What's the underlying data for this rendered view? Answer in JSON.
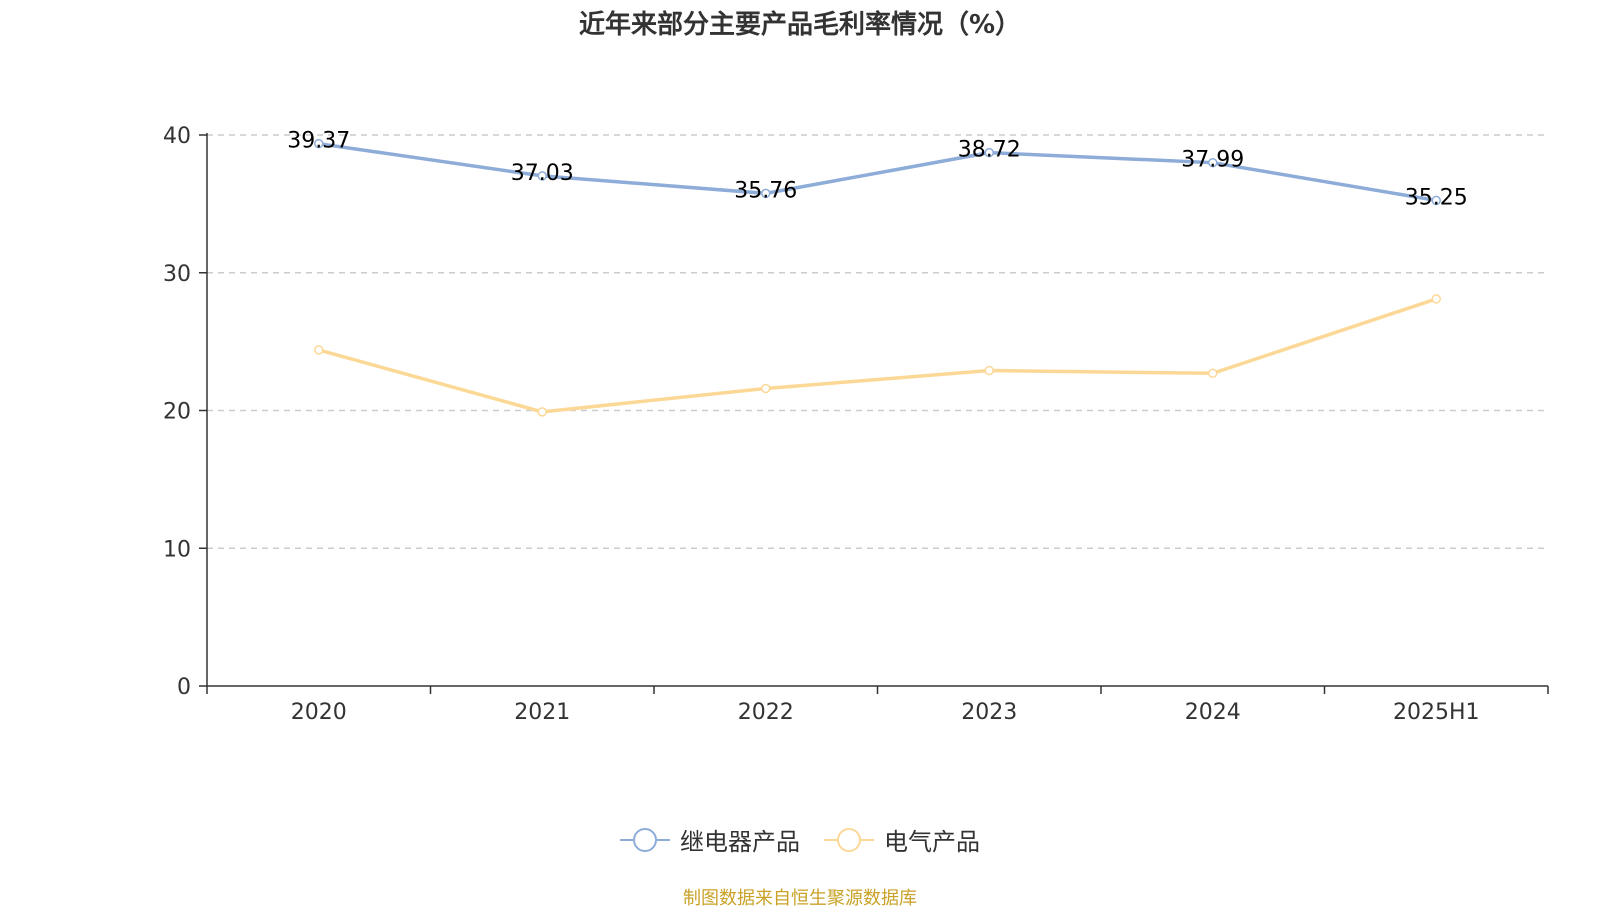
{
  "title": "近年来部分主要产品毛利率情况（%）",
  "source": "制图数据来自恒生聚源数据库",
  "chart_data": {
    "type": "line",
    "title": "近年来部分主要产品毛利率情况（%）",
    "categories": [
      "2020",
      "2021",
      "2022",
      "2023",
      "2024",
      "2025H1"
    ],
    "ylim": [
      0,
      40
    ],
    "yticks": [
      0,
      10,
      20,
      30,
      40
    ],
    "grid": true,
    "legend_position": "bottom",
    "series": [
      {
        "name": "继电器产品",
        "color": "#8eacd8",
        "values": [
          39.37,
          37.03,
          35.76,
          38.72,
          37.99,
          35.25
        ],
        "labels": [
          "39.37",
          "37.03",
          "35.76",
          "38.72",
          "37.99",
          "35.25"
        ]
      },
      {
        "name": "电气产品",
        "color": "#fcd897",
        "values": [
          24.4,
          19.9,
          21.6,
          22.9,
          22.7,
          28.1
        ]
      }
    ]
  }
}
